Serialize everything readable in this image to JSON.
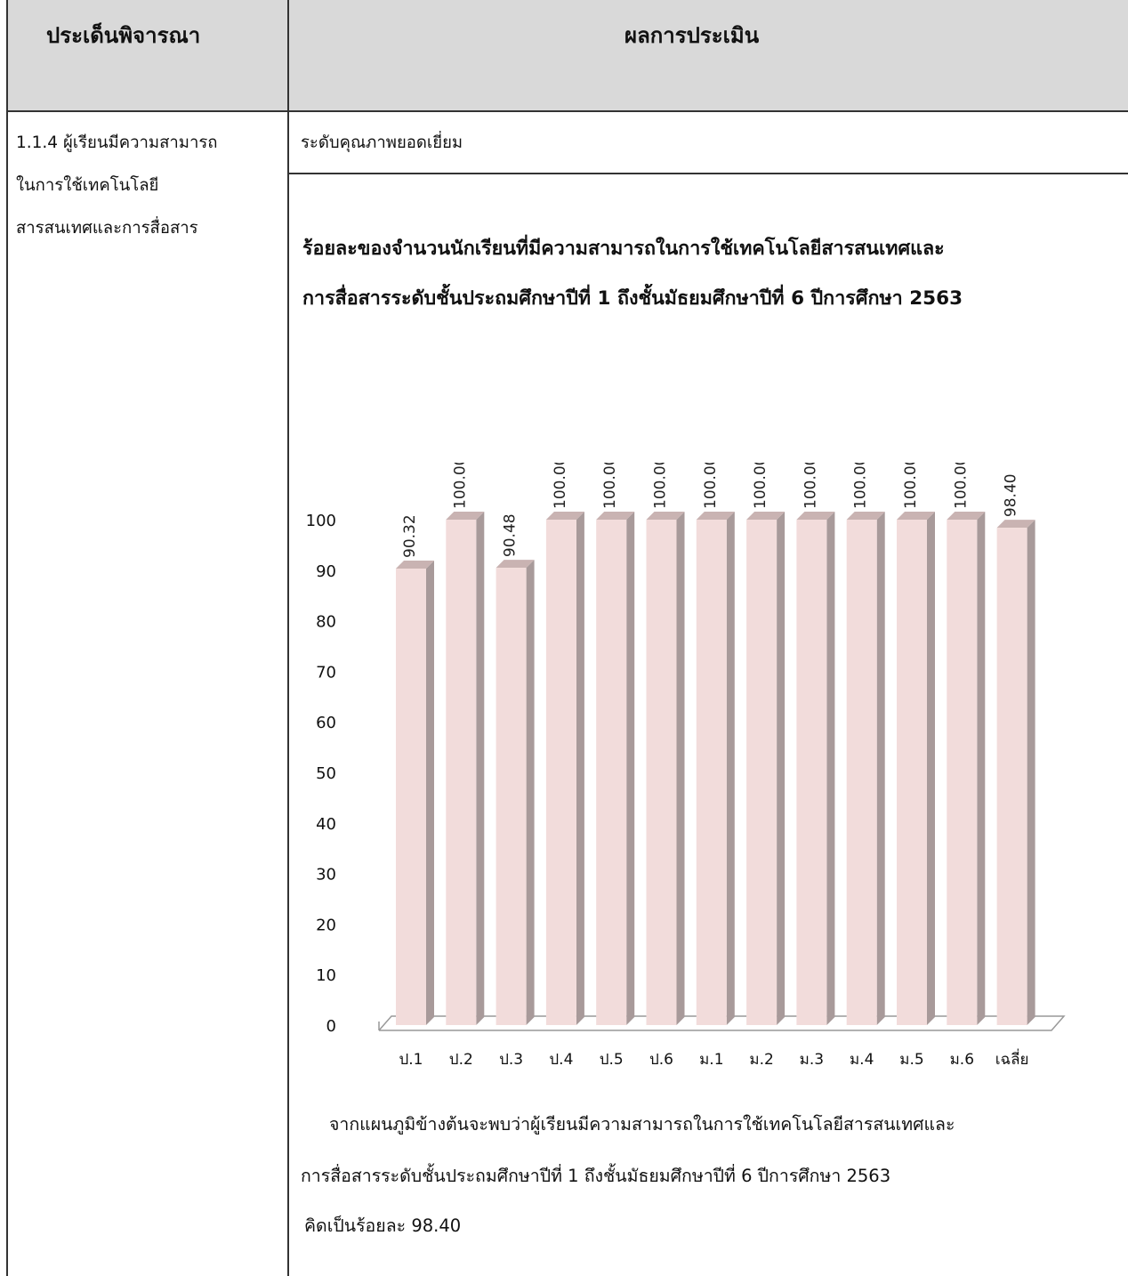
{
  "header": {
    "criteria": "ประเด็นพิจารณา",
    "result": "ผลการประเมิน"
  },
  "criteria_lines": [
    "1.1.4 ผู้เรียนมีความสามารถ",
    "ในการใช้เทคโนโลยี",
    "สารสนเทศและการสื่อสาร"
  ],
  "quality_level": "ระดับคุณภาพยอดเยี่ยม",
  "chart_title_lines": [
    "ร้อยละของจำนวนนักเรียนที่มีความสามารถในการใช้เทคโนโลยีสารสนเทศและ",
    "การสื่อสารระดับชั้นประถมศึกษาปีที่ 1 ถึงชั้นมัธยมศึกษาปีที่ 6 ปีการศึกษา 2563"
  ],
  "chart_data": {
    "type": "bar",
    "categories": [
      "ป.1",
      "ป.2",
      "ป.3",
      "ป.4",
      "ป.5",
      "ป.6",
      "ม.1",
      "ม.2",
      "ม.3",
      "ม.4",
      "ม.5",
      "ม.6",
      "เฉลี่ย"
    ],
    "values": [
      90.32,
      100.0,
      90.48,
      100.0,
      100.0,
      100.0,
      100.0,
      100.0,
      100.0,
      100.0,
      100.0,
      100.0,
      98.4
    ],
    "value_labels": [
      "90.32",
      "100.00",
      "90.48",
      "100.00",
      "100.00",
      "100.00",
      "100.00",
      "100.00",
      "100.00",
      "100.00",
      "100.00",
      "100.00",
      "98.40"
    ],
    "y_ticks": [
      0,
      10,
      20,
      30,
      40,
      50,
      60,
      70,
      80,
      90,
      100
    ],
    "ylim": [
      0,
      100
    ],
    "bar_color": "#f2dcdb",
    "bar_side_color": "#a89a9a",
    "bar_top_color": "#c9b3b2",
    "grid": false,
    "legend": "none",
    "style": "3d-column"
  },
  "summary_lines": [
    "จากแผนภูมิข้างต้นจะพบว่าผู้เรียนมีความสามารถในการใช้เทคโนโลยีสารสนเทศและ",
    "การสื่อสารระดับชั้นประถมศึกษาปีที่ 1 ถึงชั้นมัธยมศึกษาปีที่ 6 ปีการศึกษา 2563",
    "คิดเป็นร้อยละ 98.40"
  ]
}
